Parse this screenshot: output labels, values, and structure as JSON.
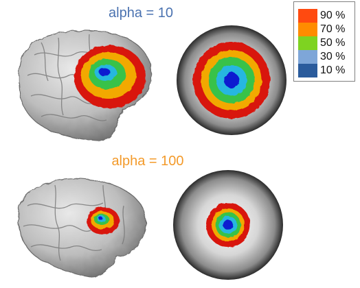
{
  "panels": [
    {
      "title": "alpha = 10",
      "title_color": "#4a72b0",
      "ring_levels": [
        0.14,
        0.28,
        0.42,
        0.55,
        0.7
      ]
    },
    {
      "title": "alpha = 100",
      "title_color": "#f39a2a",
      "ring_levels": [
        0.09,
        0.16,
        0.23,
        0.3,
        0.4
      ]
    }
  ],
  "legend": {
    "entries": [
      {
        "label": "90 %",
        "color": "#ff4a10"
      },
      {
        "label": "70 %",
        "color": "#ff8c00"
      },
      {
        "label": "50 %",
        "color": "#7ed321"
      },
      {
        "label": "30 %",
        "color": "#7ea6d8"
      },
      {
        "label": "10 %",
        "color": "#2a5b9c"
      }
    ]
  },
  "ring_colors": {
    "outer": "#d8120c",
    "mid": "#f2a900",
    "green": "#39c24a",
    "cyan": "#27b7e0",
    "core": "#0b1fd0"
  }
}
